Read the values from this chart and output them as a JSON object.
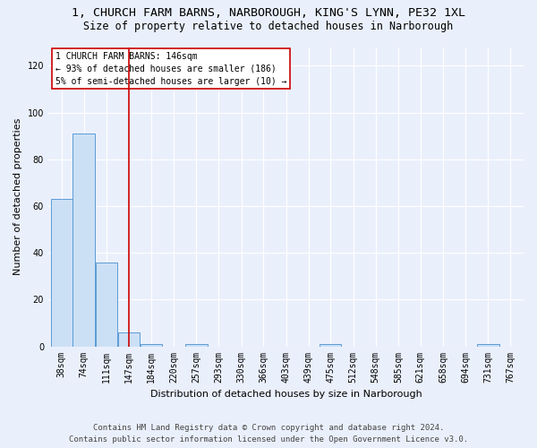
{
  "title1": "1, CHURCH FARM BARNS, NARBOROUGH, KING'S LYNN, PE32 1XL",
  "title2": "Size of property relative to detached houses in Narborough",
  "xlabel": "Distribution of detached houses by size in Narborough",
  "ylabel": "Number of detached properties",
  "footer1": "Contains HM Land Registry data © Crown copyright and database right 2024.",
  "footer2": "Contains public sector information licensed under the Open Government Licence v3.0.",
  "bins": [
    38,
    74,
    111,
    147,
    184,
    220,
    257,
    293,
    330,
    366,
    403,
    439,
    475,
    512,
    548,
    585,
    621,
    658,
    694,
    731,
    767
  ],
  "values": [
    63,
    91,
    36,
    6,
    1,
    0,
    1,
    0,
    0,
    0,
    0,
    0,
    1,
    0,
    0,
    0,
    0,
    0,
    0,
    1,
    0
  ],
  "bar_color": "#cce0f5",
  "bar_edge_color": "#5b9bd5",
  "red_line_x": 147,
  "ylim": [
    0,
    128
  ],
  "yticks": [
    0,
    20,
    40,
    60,
    80,
    100,
    120
  ],
  "annotation_text": "1 CHURCH FARM BARNS: 146sqm\n← 93% of detached houses are smaller (186)\n5% of semi-detached houses are larger (10) →",
  "annotation_box_color": "#ffffff",
  "annotation_box_edge_color": "#cc0000",
  "bg_color": "#eaf0fb",
  "grid_color": "#ffffff",
  "title1_fontsize": 9.5,
  "title2_fontsize": 8.5,
  "label_fontsize": 8,
  "tick_fontsize": 7,
  "footer_fontsize": 6.5,
  "annot_fontsize": 7
}
